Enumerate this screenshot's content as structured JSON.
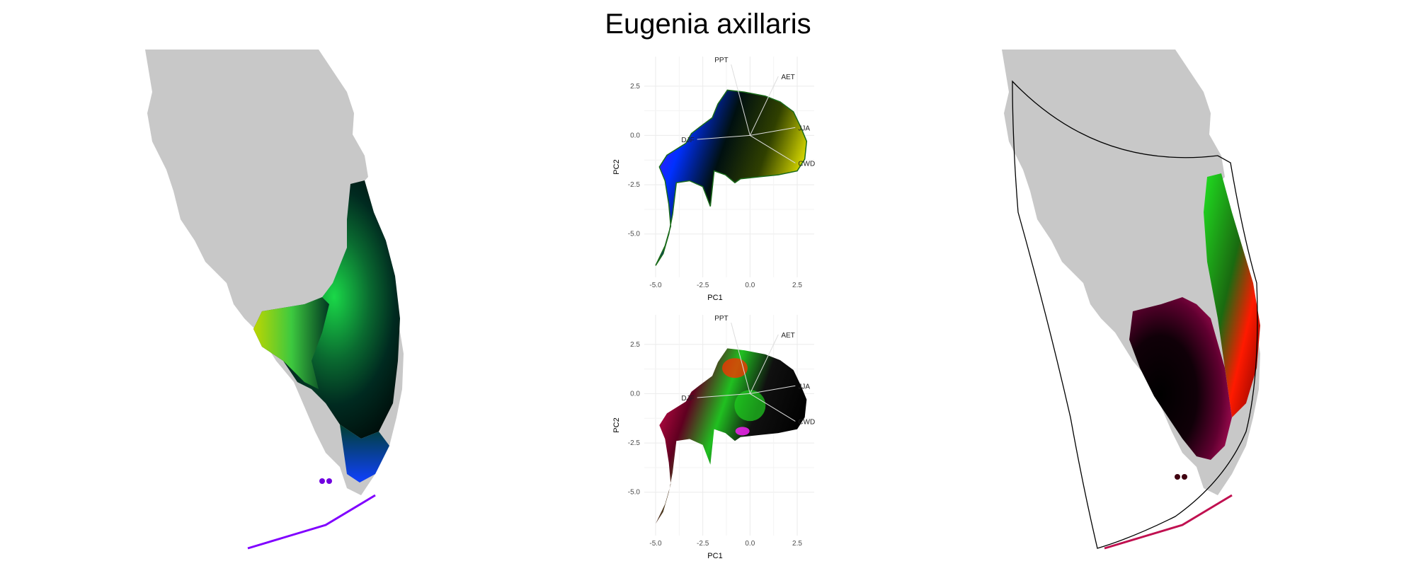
{
  "title": "Eugenia axillaris",
  "colors": {
    "land": "#c8c8c8",
    "grid": "#ebebeb",
    "axis_text": "#4d4d4d",
    "hull": "#000000"
  },
  "chart_data": [
    {
      "type": "scatter",
      "panel": "pca-top",
      "color_mode": "rgb-by-pc-space",
      "xlabel": "PC1",
      "ylabel": "PC2",
      "xlim": [
        -5.6,
        3.4
      ],
      "ylim": [
        -7.2,
        4.0
      ],
      "xticks": [
        -5.0,
        -2.5,
        0.0,
        2.5
      ],
      "xtick_labels": [
        "-5.0",
        "-2.5",
        "0.0",
        "2.5"
      ],
      "yticks": [
        -5.0,
        -2.5,
        0.0,
        2.5
      ],
      "ytick_labels": [
        "-5.0",
        "-2.5",
        "0.0",
        "2.5"
      ],
      "loadings": [
        {
          "label": "PPT",
          "x": -1.0,
          "y": 3.6
        },
        {
          "label": "AET",
          "x": 1.5,
          "y": 3.0
        },
        {
          "label": "JJA",
          "x": 2.4,
          "y": 0.4
        },
        {
          "label": "DJF",
          "x": -2.8,
          "y": -0.2
        },
        {
          "label": "CWD",
          "x": 2.4,
          "y": -1.4
        }
      ]
    },
    {
      "type": "scatter",
      "panel": "pca-bottom",
      "color_mode": "rgb-by-geographic-space",
      "xlabel": "PC1",
      "ylabel": "PC2",
      "xlim": [
        -5.6,
        3.4
      ],
      "ylim": [
        -7.2,
        4.0
      ],
      "xticks": [
        -5.0,
        -2.5,
        0.0,
        2.5
      ],
      "xtick_labels": [
        "-5.0",
        "-2.5",
        "0.0",
        "2.5"
      ],
      "yticks": [
        -5.0,
        -2.5,
        0.0,
        2.5
      ],
      "ytick_labels": [
        "-5.0",
        "-2.5",
        "0.0",
        "2.5"
      ],
      "loadings": [
        {
          "label": "PPT",
          "x": -1.0,
          "y": 3.6
        },
        {
          "label": "AET",
          "x": 1.5,
          "y": 3.0
        },
        {
          "label": "JJA",
          "x": 2.4,
          "y": 0.4
        },
        {
          "label": "DJF",
          "x": -2.8,
          "y": -0.2
        },
        {
          "label": "CWD",
          "x": 2.4,
          "y": -1.4
        }
      ]
    }
  ],
  "maps": [
    {
      "name": "map-environmental-color",
      "colors": [
        "#d8f000",
        "#20e050",
        "#003030",
        "#0040ff",
        "#8000ff"
      ]
    },
    {
      "name": "map-geographic-color",
      "colors": [
        "#20e020",
        "#000000",
        "#ff0000",
        "#a00060",
        "#ff2080"
      ]
    }
  ]
}
